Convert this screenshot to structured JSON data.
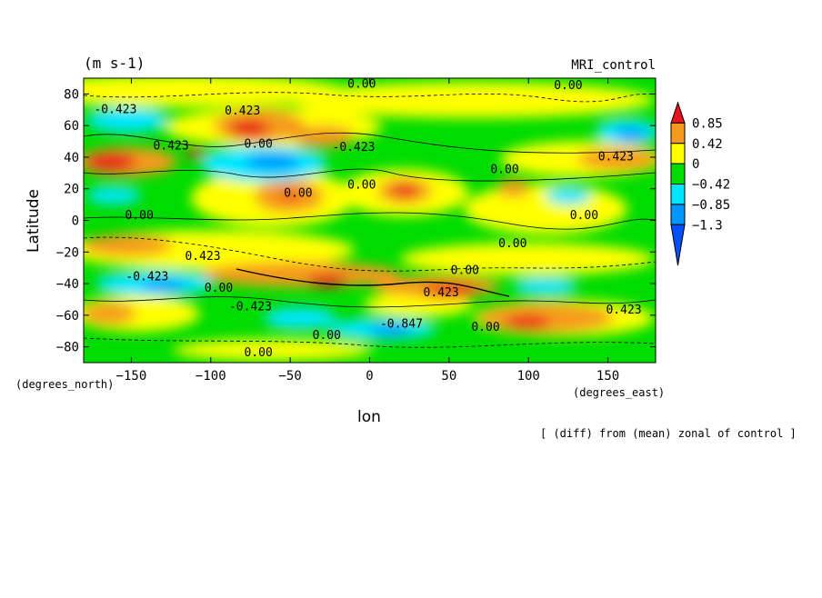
{
  "chart_data": {
    "type": "heatmap",
    "title": "MRI_control",
    "units_label": "(m s-1)",
    "xlabel": "lon",
    "ylabel": "Latitude",
    "x_unit_label": "(degrees_east)",
    "y_unit_label": "(degrees_north)",
    "note": "[ (diff) from (mean) zonal of control ]",
    "xlim": [
      -180,
      180
    ],
    "ylim": [
      -90,
      90
    ],
    "x_ticks": [
      -150,
      -100,
      -50,
      0,
      50,
      100,
      150
    ],
    "y_ticks": [
      -80,
      -60,
      -40,
      -20,
      0,
      20,
      40,
      60,
      80
    ],
    "legend": {
      "placement": "right",
      "levels": [
        "0.85",
        "0.42",
        "0",
        "-0.42",
        "-0.85",
        "-1.3"
      ],
      "colors": [
        "#e8141c",
        "#f59a1e",
        "#ffff00",
        "#00dc00",
        "#00e6ff",
        "#0096ff",
        "#0050ff"
      ]
    },
    "contour_labels": [
      {
        "text": "-0.423",
        "x": -160,
        "y": 68
      },
      {
        "text": "0.00",
        "x": -5,
        "y": 84
      },
      {
        "text": "0.00",
        "x": 125,
        "y": 83
      },
      {
        "text": "0.423",
        "x": -80,
        "y": 67
      },
      {
        "text": "0.423",
        "x": -125,
        "y": 45
      },
      {
        "text": "0.00",
        "x": -70,
        "y": 46
      },
      {
        "text": "-0.423",
        "x": -10,
        "y": 44
      },
      {
        "text": "0.00",
        "x": 85,
        "y": 30
      },
      {
        "text": "0.423",
        "x": 155,
        "y": 38
      },
      {
        "text": "0.00",
        "x": -45,
        "y": 15
      },
      {
        "text": "0.00",
        "x": -5,
        "y": 20
      },
      {
        "text": "0.00",
        "x": -145,
        "y": 1
      },
      {
        "text": "0.00",
        "x": 135,
        "y": 1
      },
      {
        "text": "0.00",
        "x": 90,
        "y": -17
      },
      {
        "text": "0.423",
        "x": -105,
        "y": -25
      },
      {
        "text": "-0.423",
        "x": -140,
        "y": -38
      },
      {
        "text": "0.00",
        "x": -95,
        "y": -45
      },
      {
        "text": "0.00",
        "x": 60,
        "y": -34
      },
      {
        "text": "-0.423",
        "x": -75,
        "y": -57
      },
      {
        "text": "0.423",
        "x": 45,
        "y": -48
      },
      {
        "text": "-0.847",
        "x": 20,
        "y": -68
      },
      {
        "text": "0.00",
        "x": -27,
        "y": -75
      },
      {
        "text": "0.00",
        "x": 73,
        "y": -70
      },
      {
        "text": "0.423",
        "x": 160,
        "y": -59
      },
      {
        "text": "0.00",
        "x": -70,
        "y": -86
      }
    ]
  }
}
